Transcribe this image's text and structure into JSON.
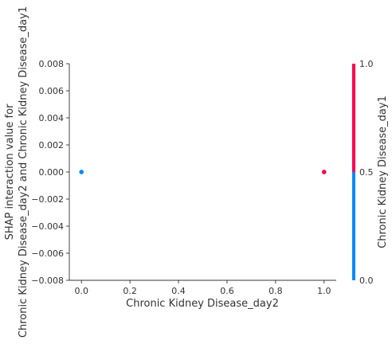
{
  "chart_data": {
    "type": "scatter",
    "title": "",
    "xlabel": "Chronic Kidney Disease_day2",
    "ylabel_lines": [
      "SHAP interaction value for",
      "Chronic Kidney Disease_day2 and Chronic Kidney Disease_day1"
    ],
    "xlim": [
      -0.05,
      1.05
    ],
    "ylim": [
      -0.008,
      0.008
    ],
    "xticks": [
      0.0,
      0.2,
      0.4,
      0.6,
      0.8,
      1.0
    ],
    "xtick_labels": [
      "0.0",
      "0.2",
      "0.4",
      "0.6",
      "0.8",
      "1.0"
    ],
    "yticks": [
      0.008,
      0.006,
      0.004,
      0.002,
      0.0,
      -0.002,
      -0.004,
      -0.006,
      -0.008
    ],
    "ytick_labels": [
      "0.008",
      "0.006",
      "0.004",
      "0.002",
      "0.000",
      "−0.002",
      "−0.004",
      "−0.006",
      "−0.008"
    ],
    "grid": false,
    "points": [
      {
        "x": 0.0,
        "y": 0.0,
        "color_value": 0.0
      },
      {
        "x": 1.0,
        "y": 0.0,
        "color_value": 1.0
      }
    ],
    "colorbar": {
      "label": "Chronic Kidney Disease_day1",
      "ticks": [
        1.0,
        0.5,
        0.0
      ],
      "tick_labels": [
        "1.0",
        "0.5",
        "0.0"
      ],
      "low_color": "#008bfb",
      "high_color": "#ff0052"
    }
  }
}
